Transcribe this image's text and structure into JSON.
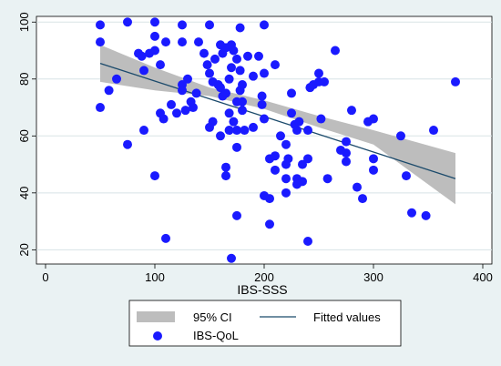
{
  "chart_data": {
    "type": "scatter",
    "title": "",
    "xlabel": "IBS-SSS",
    "ylabel": "",
    "xlim": [
      0,
      400
    ],
    "ylim": [
      15,
      102
    ],
    "x_ticks": [
      0,
      100,
      200,
      300,
      400
    ],
    "y_ticks": [
      20,
      40,
      60,
      80,
      100
    ],
    "grid": true,
    "legend_position": "bottom",
    "legend": {
      "ci_label": "95% CI",
      "fit_label": "Fitted values",
      "points_label": "IBS-QoL"
    },
    "colors": {
      "points": "#1a1aff",
      "fit_line": "#1b4a6b",
      "ci_band": "#bdbdbd",
      "plot_bg": "#ffffff",
      "outer_bg": "#eaf2f3"
    },
    "fitted_line": {
      "x": [
        50,
        375
      ],
      "y": [
        85.5,
        45
      ]
    },
    "ci_band": {
      "x": [
        50,
        100,
        150,
        200,
        250,
        300,
        375
      ],
      "lower": [
        79,
        76,
        74,
        69.5,
        63,
        57,
        36
      ],
      "upper": [
        92,
        84,
        77,
        72.5,
        67,
        62,
        54
      ]
    },
    "series": [
      {
        "name": "IBS-QoL",
        "points": [
          [
            50,
            99
          ],
          [
            50,
            93
          ],
          [
            50,
            70
          ],
          [
            58,
            76
          ],
          [
            65,
            80
          ],
          [
            75,
            100
          ],
          [
            75,
            57
          ],
          [
            85,
            89
          ],
          [
            88,
            88
          ],
          [
            90,
            83
          ],
          [
            90,
            62
          ],
          [
            95,
            89
          ],
          [
            100,
            100
          ],
          [
            100,
            95
          ],
          [
            100,
            90
          ],
          [
            100,
            46
          ],
          [
            105,
            85
          ],
          [
            105,
            68
          ],
          [
            108,
            66
          ],
          [
            110,
            93
          ],
          [
            110,
            24
          ],
          [
            115,
            71
          ],
          [
            120,
            68
          ],
          [
            125,
            99
          ],
          [
            125,
            93
          ],
          [
            125,
            78
          ],
          [
            125,
            76
          ],
          [
            128,
            69
          ],
          [
            130,
            80
          ],
          [
            133,
            72
          ],
          [
            135,
            70
          ],
          [
            138,
            75
          ],
          [
            140,
            93
          ],
          [
            145,
            89
          ],
          [
            148,
            85
          ],
          [
            150,
            99
          ],
          [
            150,
            82
          ],
          [
            150,
            63
          ],
          [
            153,
            79
          ],
          [
            153,
            65
          ],
          [
            155,
            87
          ],
          [
            158,
            78
          ],
          [
            160,
            92
          ],
          [
            160,
            77
          ],
          [
            160,
            60
          ],
          [
            162,
            89
          ],
          [
            162,
            74
          ],
          [
            165,
            91
          ],
          [
            165,
            75
          ],
          [
            165,
            49
          ],
          [
            165,
            46
          ],
          [
            168,
            80
          ],
          [
            168,
            68
          ],
          [
            168,
            62
          ],
          [
            170,
            92
          ],
          [
            170,
            84
          ],
          [
            170,
            17
          ],
          [
            172,
            90
          ],
          [
            172,
            65
          ],
          [
            175,
            87
          ],
          [
            175,
            72
          ],
          [
            175,
            62
          ],
          [
            175,
            56
          ],
          [
            175,
            32
          ],
          [
            178,
            98
          ],
          [
            178,
            83
          ],
          [
            178,
            76
          ],
          [
            180,
            78
          ],
          [
            180,
            72
          ],
          [
            180,
            69
          ],
          [
            182,
            62
          ],
          [
            185,
            88
          ],
          [
            190,
            81
          ],
          [
            190,
            63
          ],
          [
            195,
            88
          ],
          [
            198,
            74
          ],
          [
            198,
            71
          ],
          [
            200,
            99
          ],
          [
            200,
            82
          ],
          [
            200,
            66
          ],
          [
            200,
            39
          ],
          [
            205,
            52
          ],
          [
            205,
            38
          ],
          [
            205,
            29
          ],
          [
            210,
            85
          ],
          [
            210,
            53
          ],
          [
            210,
            48
          ],
          [
            215,
            60
          ],
          [
            220,
            57
          ],
          [
            220,
            50
          ],
          [
            220,
            45
          ],
          [
            220,
            40
          ],
          [
            222,
            52
          ],
          [
            225,
            75
          ],
          [
            225,
            68
          ],
          [
            228,
            64
          ],
          [
            230,
            62
          ],
          [
            230,
            45
          ],
          [
            230,
            43
          ],
          [
            232,
            65
          ],
          [
            235,
            50
          ],
          [
            235,
            44
          ],
          [
            240,
            62
          ],
          [
            240,
            52
          ],
          [
            240,
            23
          ],
          [
            242,
            77
          ],
          [
            245,
            78
          ],
          [
            250,
            82
          ],
          [
            250,
            79
          ],
          [
            252,
            66
          ],
          [
            255,
            79
          ],
          [
            258,
            45
          ],
          [
            265,
            90
          ],
          [
            270,
            55
          ],
          [
            275,
            58
          ],
          [
            275,
            54
          ],
          [
            275,
            51
          ],
          [
            280,
            69
          ],
          [
            285,
            42
          ],
          [
            290,
            38
          ],
          [
            295,
            65
          ],
          [
            300,
            66
          ],
          [
            300,
            52
          ],
          [
            300,
            48
          ],
          [
            325,
            60
          ],
          [
            330,
            46
          ],
          [
            335,
            33
          ],
          [
            348,
            32
          ],
          [
            355,
            62
          ],
          [
            375,
            79
          ]
        ]
      }
    ]
  }
}
